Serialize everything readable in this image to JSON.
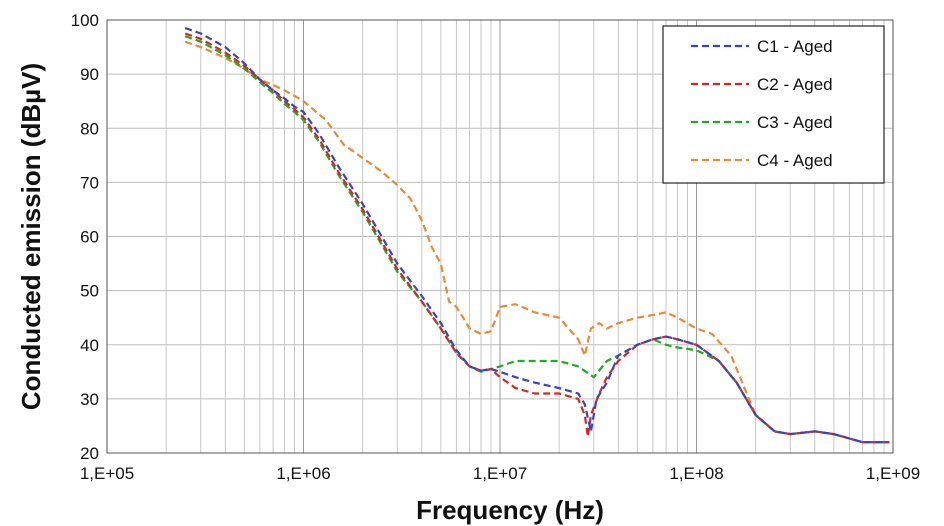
{
  "chart_data": {
    "type": "line",
    "xlabel": "Frequency (Hz)",
    "ylabel": "Conducted emission (dBµV)",
    "x_scale": "log",
    "xlim": [
      100000,
      1000000000
    ],
    "ylim": [
      20,
      100
    ],
    "x_ticks": [
      100000,
      1000000,
      10000000,
      100000000,
      1000000000
    ],
    "x_tick_labels": [
      "1,E+05",
      "1,E+06",
      "1,E+07",
      "1,E+08",
      "1,E+09"
    ],
    "y_ticks": [
      20,
      30,
      40,
      50,
      60,
      70,
      80,
      90,
      100
    ],
    "y_tick_labels": [
      "20",
      "30",
      "40",
      "50",
      "60",
      "70",
      "80",
      "90",
      "100"
    ],
    "grid": true,
    "legend_position": "top-right",
    "line_style": "dashed",
    "series": [
      {
        "name": "C1 - Aged",
        "color": "#3344cc",
        "points": [
          [
            250000,
            98.5
          ],
          [
            300000,
            97.5
          ],
          [
            400000,
            95
          ],
          [
            500000,
            92
          ],
          [
            600000,
            89
          ],
          [
            700000,
            87
          ],
          [
            800000,
            85.5
          ],
          [
            900000,
            84
          ],
          [
            1000000,
            83
          ],
          [
            1200000,
            79
          ],
          [
            1500000,
            73
          ],
          [
            2000000,
            66
          ],
          [
            2500000,
            60
          ],
          [
            3000000,
            55
          ],
          [
            4000000,
            49
          ],
          [
            5000000,
            44
          ],
          [
            6000000,
            39
          ],
          [
            7000000,
            36
          ],
          [
            8000000,
            35.2
          ],
          [
            9000000,
            35.5
          ],
          [
            10000000,
            35
          ],
          [
            12000000,
            34
          ],
          [
            15000000,
            33
          ],
          [
            20000000,
            32
          ],
          [
            25000000,
            31
          ],
          [
            27000000,
            29
          ],
          [
            29000000,
            24
          ],
          [
            31000000,
            30
          ],
          [
            35000000,
            33
          ],
          [
            40000000,
            38
          ],
          [
            50000000,
            40
          ],
          [
            60000000,
            41
          ],
          [
            70000000,
            41.5
          ],
          [
            80000000,
            41
          ],
          [
            100000000,
            40
          ],
          [
            130000000,
            37
          ],
          [
            160000000,
            33
          ],
          [
            200000000,
            27
          ],
          [
            250000000,
            24
          ],
          [
            300000000,
            23.5
          ],
          [
            400000000,
            24
          ],
          [
            500000000,
            23.5
          ],
          [
            700000000,
            22
          ],
          [
            900000000,
            22
          ],
          [
            960000000,
            22
          ]
        ]
      },
      {
        "name": "C2 - Aged",
        "color": "#dd2222",
        "points": [
          [
            250000,
            97.5
          ],
          [
            300000,
            96.5
          ],
          [
            400000,
            94
          ],
          [
            500000,
            91.5
          ],
          [
            600000,
            89
          ],
          [
            700000,
            87
          ],
          [
            800000,
            85
          ],
          [
            900000,
            83.5
          ],
          [
            1000000,
            82
          ],
          [
            1200000,
            78
          ],
          [
            1500000,
            72
          ],
          [
            2000000,
            65
          ],
          [
            2500000,
            59
          ],
          [
            3000000,
            54
          ],
          [
            4000000,
            48
          ],
          [
            5000000,
            43
          ],
          [
            6000000,
            38.5
          ],
          [
            7000000,
            36
          ],
          [
            8000000,
            35.2
          ],
          [
            9000000,
            35.5
          ],
          [
            10000000,
            34
          ],
          [
            12000000,
            32
          ],
          [
            15000000,
            31
          ],
          [
            20000000,
            31
          ],
          [
            25000000,
            30
          ],
          [
            27000000,
            27
          ],
          [
            28000000,
            23
          ],
          [
            29000000,
            27
          ],
          [
            32000000,
            31
          ],
          [
            35000000,
            34
          ],
          [
            40000000,
            37
          ],
          [
            50000000,
            40
          ],
          [
            60000000,
            41
          ],
          [
            70000000,
            41.5
          ],
          [
            80000000,
            41
          ],
          [
            100000000,
            40
          ],
          [
            130000000,
            37
          ],
          [
            160000000,
            33
          ],
          [
            200000000,
            27
          ],
          [
            250000000,
            24
          ],
          [
            300000000,
            23.5
          ],
          [
            400000000,
            24
          ],
          [
            500000000,
            23.5
          ],
          [
            700000000,
            22
          ],
          [
            900000000,
            22
          ],
          [
            960000000,
            22
          ]
        ]
      },
      {
        "name": "C3 - Aged",
        "color": "#22aa22",
        "points": [
          [
            250000,
            97
          ],
          [
            300000,
            96
          ],
          [
            400000,
            93.5
          ],
          [
            500000,
            91
          ],
          [
            600000,
            88.5
          ],
          [
            700000,
            86.5
          ],
          [
            800000,
            84.5
          ],
          [
            900000,
            83
          ],
          [
            1000000,
            81.5
          ],
          [
            1200000,
            77.5
          ],
          [
            1500000,
            71.5
          ],
          [
            2000000,
            64.5
          ],
          [
            2500000,
            58.5
          ],
          [
            3000000,
            53.5
          ],
          [
            4000000,
            48
          ],
          [
            5000000,
            43
          ],
          [
            6000000,
            38.5
          ],
          [
            7000000,
            36
          ],
          [
            8000000,
            35
          ],
          [
            9000000,
            35.5
          ],
          [
            10000000,
            36
          ],
          [
            12000000,
            37
          ],
          [
            15000000,
            37
          ],
          [
            20000000,
            37
          ],
          [
            25000000,
            36
          ],
          [
            30000000,
            34
          ],
          [
            35000000,
            37
          ],
          [
            40000000,
            38
          ],
          [
            50000000,
            40
          ],
          [
            60000000,
            41
          ],
          [
            70000000,
            40
          ],
          [
            80000000,
            39.5
          ],
          [
            100000000,
            39
          ],
          [
            130000000,
            37
          ],
          [
            160000000,
            33
          ],
          [
            200000000,
            27
          ],
          [
            250000000,
            24
          ],
          [
            300000000,
            23.5
          ],
          [
            400000000,
            24
          ],
          [
            500000000,
            23.5
          ],
          [
            700000000,
            22
          ],
          [
            900000000,
            22
          ],
          [
            960000000,
            22
          ]
        ]
      },
      {
        "name": "C4 - Aged",
        "color": "#ee8833",
        "points": [
          [
            250000,
            96
          ],
          [
            300000,
            95
          ],
          [
            400000,
            93
          ],
          [
            500000,
            91
          ],
          [
            600000,
            89
          ],
          [
            700000,
            88
          ],
          [
            800000,
            87
          ],
          [
            900000,
            86
          ],
          [
            1000000,
            85
          ],
          [
            1300000,
            81.5
          ],
          [
            1600000,
            77
          ],
          [
            2000000,
            74.5
          ],
          [
            2500000,
            72
          ],
          [
            3000000,
            69.5
          ],
          [
            3500000,
            67
          ],
          [
            4000000,
            63
          ],
          [
            4500000,
            58
          ],
          [
            5000000,
            55
          ],
          [
            5500000,
            48
          ],
          [
            6000000,
            47
          ],
          [
            6500000,
            45
          ],
          [
            7000000,
            43
          ],
          [
            8000000,
            42
          ],
          [
            9000000,
            42.5
          ],
          [
            10000000,
            47
          ],
          [
            12000000,
            47.5
          ],
          [
            15000000,
            46
          ],
          [
            20000000,
            45
          ],
          [
            25000000,
            41
          ],
          [
            27000000,
            38
          ],
          [
            29000000,
            43
          ],
          [
            32000000,
            44
          ],
          [
            35000000,
            43
          ],
          [
            40000000,
            44
          ],
          [
            50000000,
            45
          ],
          [
            60000000,
            45.5
          ],
          [
            70000000,
            46
          ],
          [
            80000000,
            45
          ],
          [
            100000000,
            43
          ],
          [
            120000000,
            42
          ],
          [
            150000000,
            38
          ],
          [
            200000000,
            27
          ],
          [
            250000000,
            24
          ],
          [
            300000000,
            23.5
          ],
          [
            400000000,
            24
          ],
          [
            500000000,
            23.5
          ],
          [
            700000000,
            22
          ],
          [
            900000000,
            22
          ],
          [
            960000000,
            22
          ]
        ]
      }
    ]
  }
}
